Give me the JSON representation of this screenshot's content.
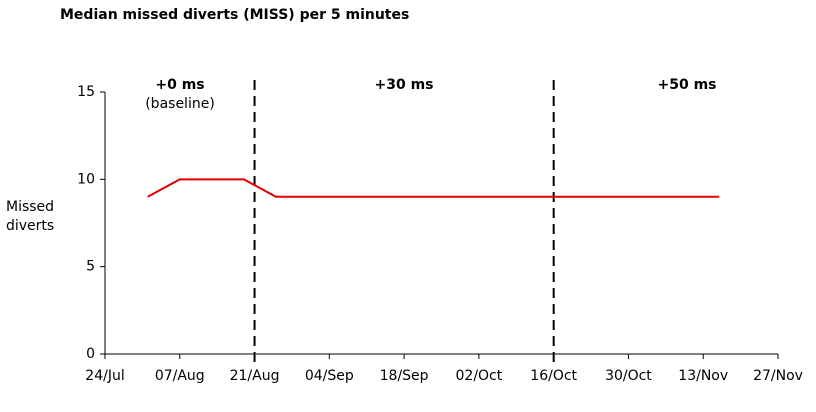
{
  "chart_data": {
    "type": "line",
    "title": "Median missed diverts (MISS) per 5 minutes",
    "ylabel": "Missed diverts",
    "x": [
      "01/Aug",
      "07/Aug",
      "19/Aug",
      "25/Aug",
      "16/Nov"
    ],
    "series": [
      {
        "name": "MISS",
        "color": "#e00000",
        "values": [
          9,
          10,
          10,
          9,
          9
        ]
      }
    ],
    "xlim": [
      "24/Jul",
      "27/Nov"
    ],
    "xticks": [
      "24/Jul",
      "07/Aug",
      "21/Aug",
      "04/Sep",
      "18/Sep",
      "02/Oct",
      "16/Oct",
      "30/Oct",
      "13/Nov",
      "27/Nov"
    ],
    "ylim": [
      0,
      15
    ],
    "yticks": [
      0,
      5,
      10,
      15
    ],
    "dividers": [
      "21/Aug",
      "16/Oct"
    ],
    "phases": [
      {
        "label": "+0 ms",
        "note": "(baseline)"
      },
      {
        "label": "+30 ms"
      },
      {
        "label": "+50 ms"
      }
    ]
  }
}
